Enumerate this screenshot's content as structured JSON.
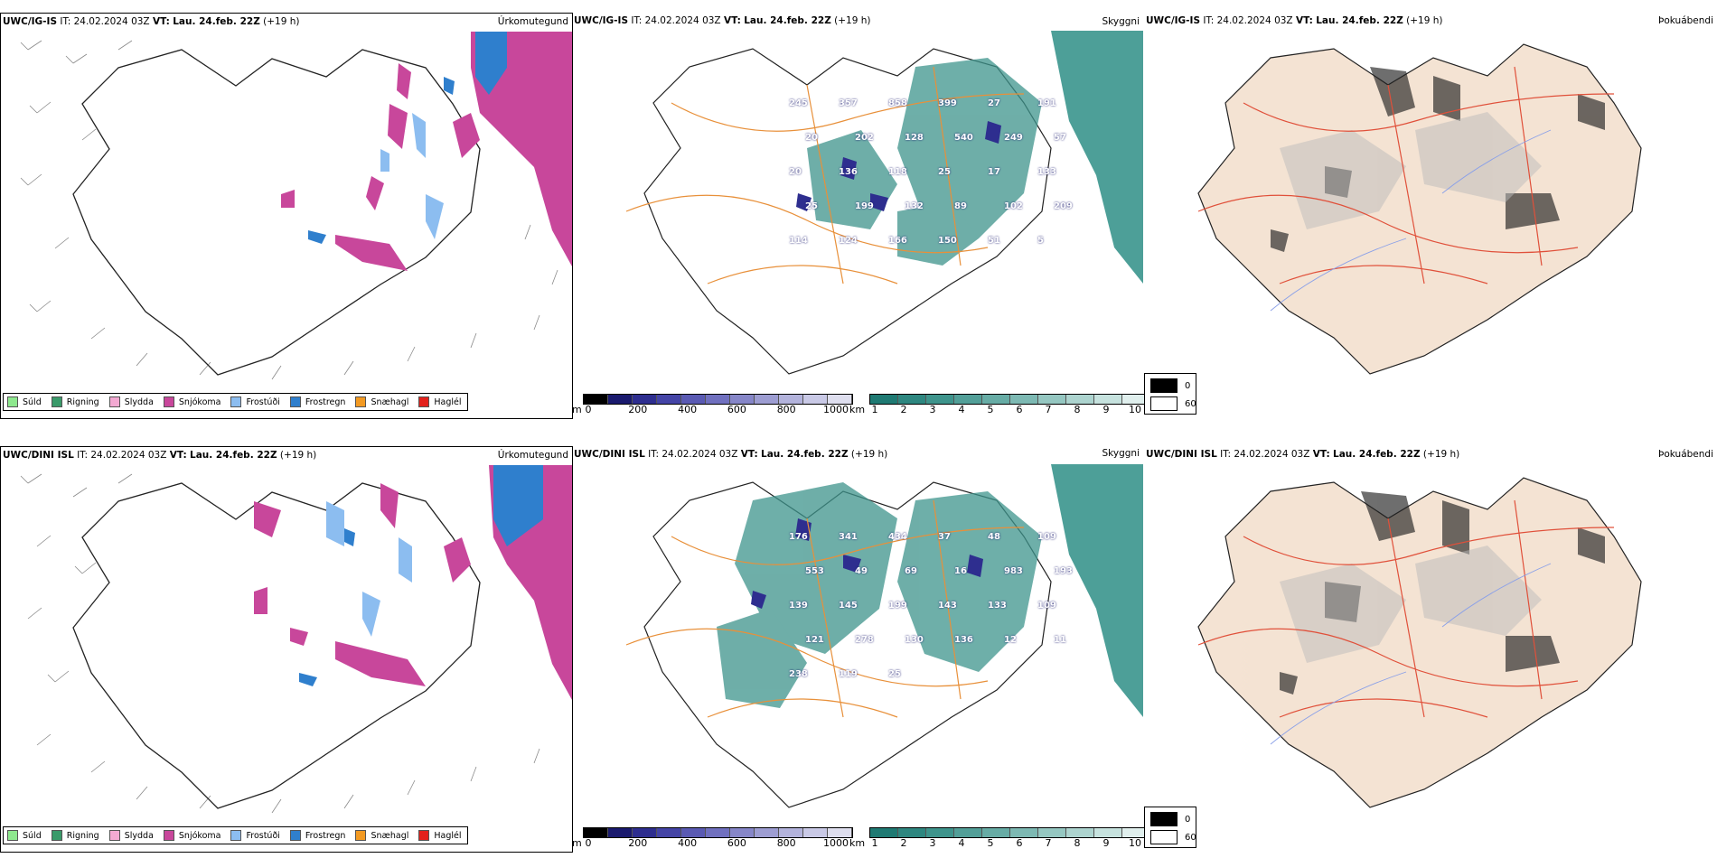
{
  "rows": [
    {
      "id": "ig",
      "field_title": {
        "model": "UWC/IG-IS",
        "it_label": "IT:",
        "it_value": "24.02.2024 03Z",
        "vt_label": "VT:",
        "vt_value": "Lau. 24.feb. 22Z",
        "lead": "(+19 h)"
      },
      "precip_label": "Úrkomutegund",
      "cloud_label": "Skyggni",
      "fog_label": "Þokuábendi",
      "visibility_numbers": [
        "245",
        "357",
        "858",
        "399",
        "27",
        "191",
        "20",
        "202",
        "128",
        "540",
        "249",
        "57",
        "20",
        "136",
        "118",
        "25",
        "17",
        "133",
        "25",
        "199",
        "132",
        "89",
        "102",
        "209",
        "114",
        "124",
        "166",
        "150",
        "51",
        "5"
      ]
    },
    {
      "id": "dini",
      "field_title": {
        "model": "UWC/DINI ISL",
        "it_label": "IT:",
        "it_value": "24.02.2024 03Z",
        "vt_label": "VT:",
        "vt_value": "Lau. 24.feb. 22Z",
        "lead": "(+19 h)"
      },
      "precip_label": "Úrkomutegund",
      "cloud_label": "Skyggni",
      "fog_label": "Þokuábendi",
      "visibility_numbers": [
        "176",
        "341",
        "434",
        "37",
        "48",
        "109",
        "553",
        "49",
        "69",
        "16",
        "983",
        "193",
        "139",
        "145",
        "199",
        "143",
        "133",
        "109",
        "121",
        "278",
        "130",
        "136",
        "12",
        "11",
        "238",
        "119",
        "25"
      ]
    }
  ],
  "precip_legend": [
    {
      "label": "Súld",
      "color": "#8ee88e"
    },
    {
      "label": "Rigning",
      "color": "#3a9a6a"
    },
    {
      "label": "Slydda",
      "color": "#f3a9d2"
    },
    {
      "label": "Snjókoma",
      "color": "#c8479b"
    },
    {
      "label": "Frostúði",
      "color": "#8cbdf0"
    },
    {
      "label": "Frostregn",
      "color": "#2f7fcd"
    },
    {
      "label": "Snæhagl",
      "color": "#f39a22"
    },
    {
      "label": "Haglél",
      "color": "#e3211c"
    }
  ],
  "ceiling_bar": {
    "unit": "m",
    "ticks": [
      "0",
      "200",
      "400",
      "600",
      "800",
      "1000"
    ],
    "colors": [
      "#000000",
      "#1a1a6e",
      "#2e2e8f",
      "#4444a6",
      "#5a5ab3",
      "#7070bf",
      "#8686c8",
      "#9d9dd2",
      "#b3b3dc",
      "#c9c9e6",
      "#dedeee"
    ]
  },
  "visibility_bar": {
    "unit": "km",
    "ticks": [
      "1",
      "2",
      "3",
      "4",
      "5",
      "6",
      "7",
      "8",
      "9",
      "10"
    ],
    "colors": [
      "#1f7a73",
      "#2e8780",
      "#3e948c",
      "#529f98",
      "#67aca5",
      "#7db9b3",
      "#95c7c1",
      "#add4cf",
      "#c6e2de",
      "#e0efed"
    ]
  },
  "fog_legend": [
    {
      "label": "0",
      "color": "#000000"
    },
    {
      "label": "60",
      "color": "#ffffff"
    }
  ],
  "colors": {
    "coast": "#222222",
    "roads": "#e8903a",
    "roads_red": "#e0503a",
    "rivers": "#8aa0e8",
    "land_fog": "#f4e3d3",
    "sea_teal": "#2e8e86",
    "snow": "#c8479b",
    "frost_blue": "#2f7fcd"
  }
}
